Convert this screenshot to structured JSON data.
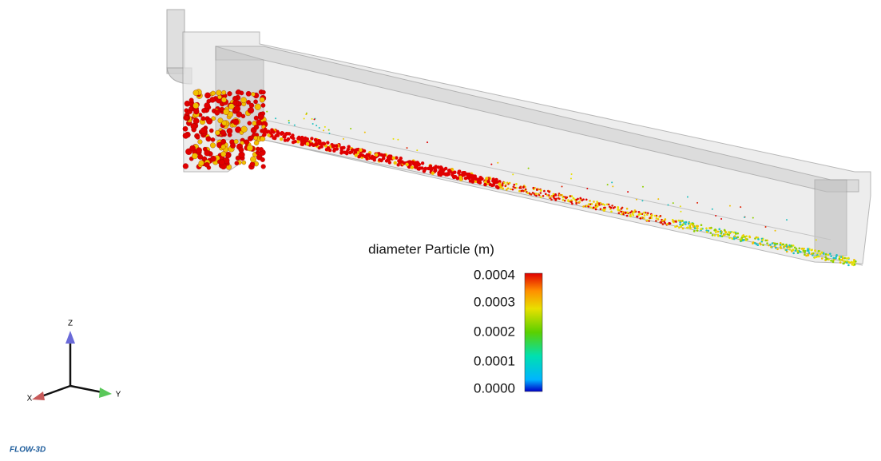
{
  "colorbar": {
    "title": "diameter Particle (m)",
    "range": [
      0,
      0.0004
    ],
    "ticks": [
      0.0004,
      0.0003,
      0.0002,
      0.0001,
      {
        "value": 0,
        "label": "0.0000"
      }
    ]
  },
  "axes": {
    "z": "Z",
    "x": "X",
    "y": "Y"
  },
  "logo": "FLOW-3D"
}
